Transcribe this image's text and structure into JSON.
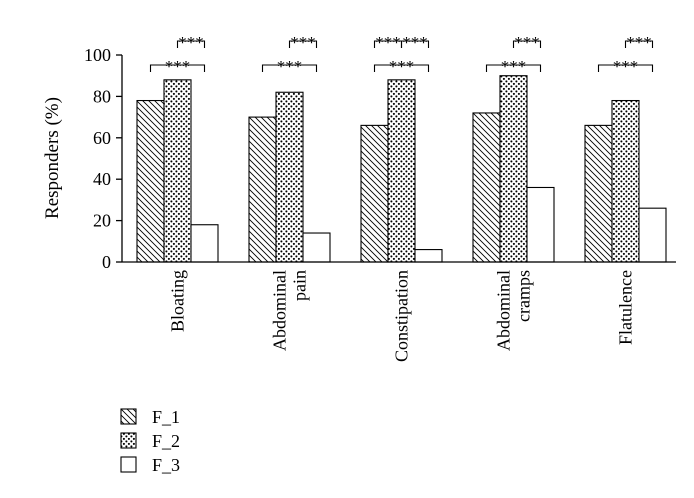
{
  "chart_data": {
    "type": "bar",
    "title": "",
    "xlabel": "",
    "ylabel": "Responders (%)",
    "ylim": [
      0,
      100
    ],
    "yticks": [
      0,
      20,
      40,
      60,
      80,
      100
    ],
    "categories": [
      [
        "Bloating"
      ],
      [
        "Abdominal",
        "pain"
      ],
      [
        "Constipation"
      ],
      [
        "Abdominal",
        "cramps"
      ],
      [
        "Flatulence"
      ]
    ],
    "series": [
      {
        "name": "F_1",
        "pattern": "diagonal-hatch",
        "values": [
          78,
          70,
          66,
          72,
          66
        ]
      },
      {
        "name": "F_2",
        "pattern": "dots",
        "values": [
          88,
          82,
          88,
          90,
          78
        ]
      },
      {
        "name": "F_3",
        "pattern": "empty",
        "values": [
          18,
          14,
          6,
          36,
          26
        ]
      }
    ],
    "significance": [
      {
        "category": 0,
        "pairs": [
          [
            "F_2",
            "F_3",
            "***"
          ],
          [
            "F_1",
            "F_3",
            "***"
          ]
        ]
      },
      {
        "category": 1,
        "pairs": [
          [
            "F_2",
            "F_3",
            "***"
          ],
          [
            "F_1",
            "F_3",
            "***"
          ]
        ]
      },
      {
        "category": 2,
        "pairs": [
          [
            "F_1",
            "F_2",
            "***"
          ],
          [
            "F_2",
            "F_3",
            "***"
          ],
          [
            "F_1",
            "F_3",
            "***"
          ]
        ]
      },
      {
        "category": 3,
        "pairs": [
          [
            "F_2",
            "F_3",
            "***"
          ],
          [
            "F_1",
            "F_3",
            "***"
          ]
        ]
      },
      {
        "category": 4,
        "pairs": [
          [
            "F_2",
            "F_3",
            "***"
          ],
          [
            "F_1",
            "F_3",
            "***"
          ]
        ]
      }
    ],
    "legend": [
      "F_1",
      "F_2",
      "F_3"
    ],
    "legend_position": "bottom-left",
    "colors": {
      "stroke": "#000000",
      "fill": "#ffffff"
    }
  }
}
